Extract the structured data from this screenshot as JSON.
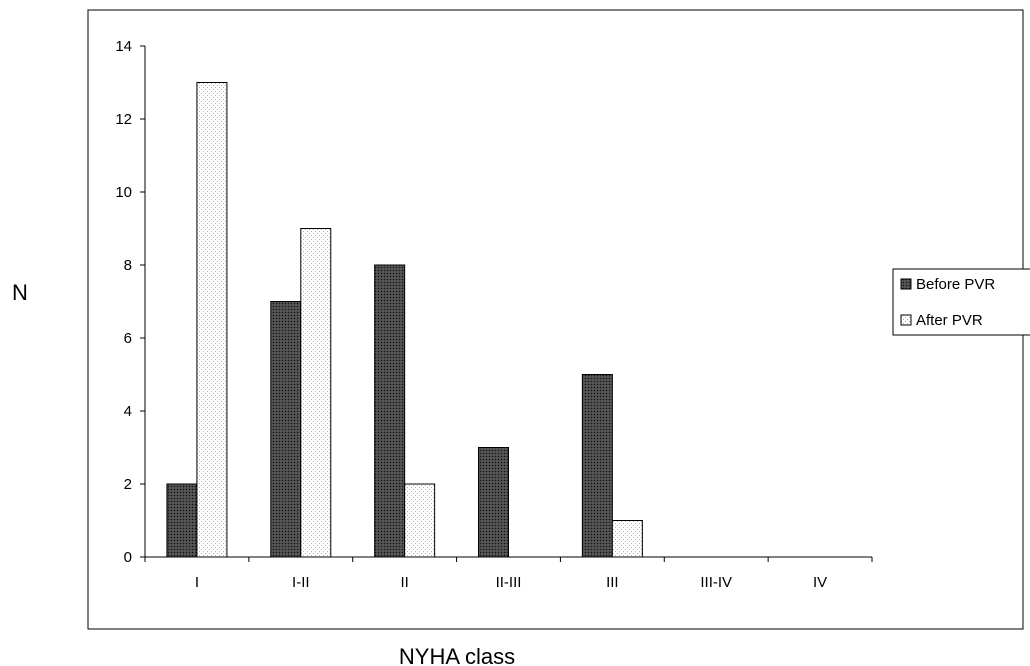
{
  "chart_data": {
    "type": "bar",
    "categories": [
      "I",
      "I-II",
      "II",
      "II-III",
      "III",
      "III-IV",
      "IV"
    ],
    "series": [
      {
        "name": "Before PVR",
        "values": [
          2,
          7,
          8,
          3,
          5,
          0,
          0
        ],
        "pattern": "dark-checker"
      },
      {
        "name": "After PVR",
        "values": [
          13,
          9,
          2,
          0,
          1,
          0,
          0
        ],
        "pattern": "light-dots"
      }
    ],
    "title": "",
    "xlabel": "NYHA class",
    "ylabel": "N",
    "ylim": [
      0,
      14
    ],
    "yticks": [
      0,
      2,
      4,
      6,
      8,
      10,
      12,
      14
    ],
    "grid": false,
    "legend": "right",
    "colors": {
      "before_fill": "#4a4a4a",
      "before_dot": "#1a1a1a",
      "after_fill": "#ffffff",
      "after_dot": "#bdbdbd",
      "frame": "#000000"
    }
  }
}
